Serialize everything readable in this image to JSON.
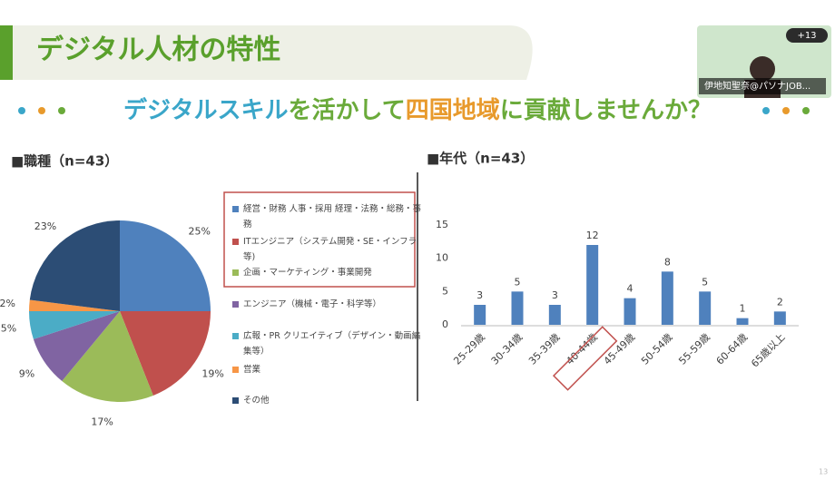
{
  "header": {
    "title": "デジタル人材の特性",
    "subtitle_parts": [
      {
        "text": "デジタルスキル",
        "color": "#3aa6c9"
      },
      {
        "text": "を活かして",
        "color": "#6aaa3a"
      },
      {
        "text": "四国地域",
        "color": "#e89a2c"
      },
      {
        "text": "に貢献しませんか？",
        "color": "#6aaa3a"
      }
    ]
  },
  "video": {
    "participants": "+13",
    "name": "伊地知聖奈@パソナJOB..."
  },
  "page_number": "13",
  "chart_data": [
    {
      "type": "pie",
      "title": "■職種（n=43）",
      "categories": [
        "経営・財務 人事・採用 経理・法務・総務・事務",
        "ITエンジニア（システム開発・SE・インフラ等)",
        "企画・マーケティング・事業開発",
        "エンジニア（機械・電子・科学等）",
        "広報・PR クリエイティブ（デザイン・動画編集等）",
        "営業",
        "その他"
      ],
      "values": [
        25,
        19,
        17,
        9,
        5,
        2,
        23
      ],
      "value_labels": [
        "25%",
        "19%",
        "17%",
        "9%",
        "5%",
        "2%",
        "23%"
      ],
      "colors": [
        "#4f81bd",
        "#c0504d",
        "#9bbb59",
        "#8064a2",
        "#4bacc6",
        "#f79646",
        "#2c4d75"
      ],
      "legend_highlight_count": 3
    },
    {
      "type": "bar",
      "title": "■年代（n=43）",
      "categories": [
        "25-29歳",
        "30-34歳",
        "35-39歳",
        "40-44歳",
        "45-49歳",
        "50-54歳",
        "55-59歳",
        "60-64歳",
        "65歳以上"
      ],
      "values": [
        3,
        5,
        3,
        12,
        4,
        8,
        5,
        1,
        2
      ],
      "color": "#4f81bd",
      "ylim": [
        0,
        15
      ],
      "yticks": [
        0,
        5,
        10,
        15
      ],
      "grid": false,
      "highlight_index": 3
    }
  ]
}
